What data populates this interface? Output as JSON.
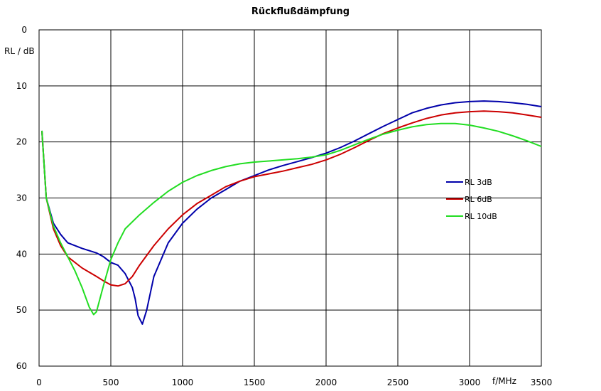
{
  "chart_data": {
    "type": "line",
    "title": "Rückflußdämpfung",
    "ylabel": "RL / dB",
    "xlabel": "f/MHz",
    "xlim": [
      0,
      3500
    ],
    "ylim": [
      0,
      60
    ],
    "y_inverted": true,
    "x_ticks": [
      0,
      500,
      1000,
      1500,
      2000,
      2500,
      3000,
      3500
    ],
    "y_ticks": [
      0,
      10,
      20,
      30,
      40,
      50,
      60
    ],
    "grid": true,
    "legend_position": "right",
    "series": [
      {
        "name": "RL  3dB",
        "color": "#0000aa",
        "points": [
          [
            20,
            18
          ],
          [
            50,
            30
          ],
          [
            100,
            34.5
          ],
          [
            150,
            36.5
          ],
          [
            200,
            38
          ],
          [
            300,
            39
          ],
          [
            400,
            39.8
          ],
          [
            450,
            40.5
          ],
          [
            500,
            41.5
          ],
          [
            550,
            42
          ],
          [
            600,
            43.5
          ],
          [
            650,
            46
          ],
          [
            670,
            48
          ],
          [
            690,
            51
          ],
          [
            720,
            52.5
          ],
          [
            750,
            50
          ],
          [
            800,
            44
          ],
          [
            900,
            38
          ],
          [
            1000,
            34.5
          ],
          [
            1100,
            32
          ],
          [
            1200,
            30
          ],
          [
            1300,
            28.5
          ],
          [
            1400,
            27
          ],
          [
            1500,
            26
          ],
          [
            1600,
            25
          ],
          [
            1700,
            24.2
          ],
          [
            1800,
            23.5
          ],
          [
            1900,
            22.8
          ],
          [
            2000,
            22
          ],
          [
            2100,
            21
          ],
          [
            2200,
            19.8
          ],
          [
            2300,
            18.5
          ],
          [
            2400,
            17.2
          ],
          [
            2500,
            16
          ],
          [
            2600,
            14.8
          ],
          [
            2700,
            14
          ],
          [
            2800,
            13.4
          ],
          [
            2900,
            13
          ],
          [
            3000,
            12.8
          ],
          [
            3100,
            12.7
          ],
          [
            3200,
            12.8
          ],
          [
            3300,
            13
          ],
          [
            3400,
            13.3
          ],
          [
            3500,
            13.7
          ]
        ]
      },
      {
        "name": "RL  6dB",
        "color": "#cc0000",
        "points": [
          [
            20,
            18
          ],
          [
            50,
            30
          ],
          [
            100,
            35.5
          ],
          [
            150,
            38.5
          ],
          [
            200,
            40.5
          ],
          [
            300,
            42.5
          ],
          [
            400,
            44
          ],
          [
            450,
            44.8
          ],
          [
            500,
            45.5
          ],
          [
            550,
            45.7
          ],
          [
            600,
            45.3
          ],
          [
            650,
            44
          ],
          [
            700,
            42
          ],
          [
            800,
            38.5
          ],
          [
            900,
            35.5
          ],
          [
            1000,
            33
          ],
          [
            1100,
            31
          ],
          [
            1200,
            29.5
          ],
          [
            1300,
            28
          ],
          [
            1400,
            27
          ],
          [
            1500,
            26.2
          ],
          [
            1600,
            25.7
          ],
          [
            1700,
            25.2
          ],
          [
            1800,
            24.6
          ],
          [
            1900,
            24
          ],
          [
            2000,
            23.2
          ],
          [
            2100,
            22.2
          ],
          [
            2200,
            21
          ],
          [
            2300,
            19.7
          ],
          [
            2400,
            18.5
          ],
          [
            2500,
            17.5
          ],
          [
            2600,
            16.6
          ],
          [
            2700,
            15.8
          ],
          [
            2800,
            15.2
          ],
          [
            2900,
            14.8
          ],
          [
            3000,
            14.6
          ],
          [
            3100,
            14.5
          ],
          [
            3200,
            14.6
          ],
          [
            3300,
            14.8
          ],
          [
            3400,
            15.2
          ],
          [
            3500,
            15.6
          ]
        ]
      },
      {
        "name": "RL  10dB",
        "color": "#22dd22",
        "points": [
          [
            20,
            18
          ],
          [
            50,
            30
          ],
          [
            100,
            35
          ],
          [
            150,
            38
          ],
          [
            200,
            40.5
          ],
          [
            250,
            43
          ],
          [
            300,
            46
          ],
          [
            350,
            49.5
          ],
          [
            380,
            50.8
          ],
          [
            400,
            50.3
          ],
          [
            450,
            45.5
          ],
          [
            500,
            41
          ],
          [
            550,
            38
          ],
          [
            600,
            35.5
          ],
          [
            700,
            33
          ],
          [
            800,
            30.8
          ],
          [
            900,
            28.8
          ],
          [
            1000,
            27.2
          ],
          [
            1100,
            26
          ],
          [
            1200,
            25.1
          ],
          [
            1300,
            24.4
          ],
          [
            1400,
            23.9
          ],
          [
            1500,
            23.6
          ],
          [
            1600,
            23.4
          ],
          [
            1700,
            23.2
          ],
          [
            1800,
            23
          ],
          [
            1900,
            22.7
          ],
          [
            2000,
            22.3
          ],
          [
            2100,
            21.5
          ],
          [
            2200,
            20.5
          ],
          [
            2300,
            19.5
          ],
          [
            2400,
            18.6
          ],
          [
            2500,
            17.9
          ],
          [
            2600,
            17.3
          ],
          [
            2700,
            16.9
          ],
          [
            2800,
            16.7
          ],
          [
            2900,
            16.7
          ],
          [
            3000,
            17
          ],
          [
            3100,
            17.5
          ],
          [
            3200,
            18.1
          ],
          [
            3300,
            18.9
          ],
          [
            3400,
            19.8
          ],
          [
            3500,
            20.8
          ]
        ]
      }
    ]
  }
}
